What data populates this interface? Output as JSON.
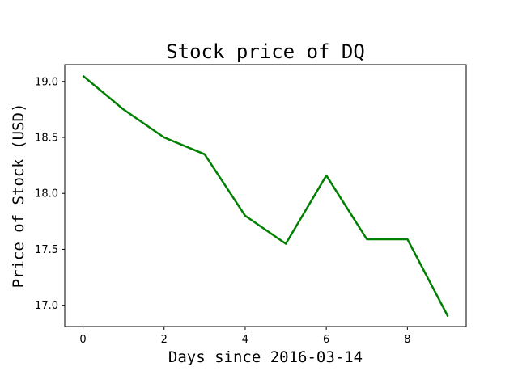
{
  "chart_data": {
    "type": "line",
    "title": "Stock price of DQ",
    "xlabel": "Days since 2016-03-14",
    "ylabel": "Price of Stock (USD)",
    "x": [
      0,
      1,
      2,
      3,
      4,
      5,
      6,
      7,
      8,
      9
    ],
    "series": [
      {
        "values": [
          19.05,
          18.75,
          18.5,
          18.35,
          17.8,
          17.55,
          18.16,
          17.59,
          17.59,
          16.9
        ],
        "color": "#008000"
      }
    ],
    "xlim": [
      -0.45,
      9.45
    ],
    "ylim": [
      16.81,
      19.15
    ],
    "xticks": [
      0,
      2,
      4,
      6,
      8
    ],
    "xtick_labels": [
      "0",
      "2",
      "4",
      "6",
      "8"
    ],
    "yticks": [
      17.0,
      17.5,
      18.0,
      18.5,
      19.0
    ],
    "ytick_labels": [
      "17.0",
      "17.5",
      "18.0",
      "18.5",
      "19.0"
    ],
    "grid": false,
    "legend": "none"
  }
}
